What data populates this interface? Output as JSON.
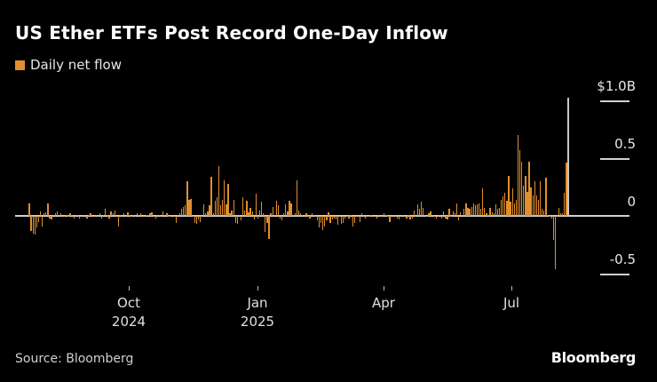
{
  "header": {
    "title": "US Ether ETFs Post Record One-Day Inflow",
    "legend_label": "Daily net flow"
  },
  "colors": {
    "background": "#000000",
    "bar": "#e08f2e",
    "highlight_bar": "#c8c8c8",
    "axis": "#cfcfcf"
  },
  "y_axis": {
    "ticks": [
      {
        "value": 1.0,
        "label": "$1.0B"
      },
      {
        "value": 0.5,
        "label": "0.5"
      },
      {
        "value": 0,
        "label": "0"
      },
      {
        "value": -0.5,
        "label": "-0.5"
      }
    ]
  },
  "x_axis": {
    "ticks": [
      {
        "line1": "Oct",
        "line2": "2024",
        "x": 145
      },
      {
        "line1": "Jan",
        "line2": "2025",
        "x": 290
      },
      {
        "line1": "Apr",
        "line2": "",
        "x": 432
      },
      {
        "line1": "Jul",
        "line2": "",
        "x": 576
      }
    ]
  },
  "footer": {
    "source": "Source: Bloomberg",
    "brand": "Bloomberg"
  },
  "chart_data": {
    "type": "bar",
    "title": "US Ether ETFs Post Record One-Day Inflow",
    "legend": [
      "Daily net flow"
    ],
    "xlabel": "",
    "ylabel": "Daily net flow ($B)",
    "ylim": [
      -0.55,
      1.05
    ],
    "x_range": [
      "2024-07-23",
      "2025-08-11"
    ],
    "x_tick_labels": [
      "Oct 2024",
      "Jan 2025",
      "Apr",
      "Jul"
    ],
    "y_tick_labels": [
      "$1.0B",
      "0.5",
      "0",
      "-0.5"
    ],
    "grid": false,
    "legend_position": "top-left",
    "highlight": {
      "index": "last",
      "label": "Record one-day inflow",
      "value": 1.02
    },
    "values": [
      0.11,
      -0.13,
      -0.15,
      -0.16,
      -0.1,
      -0.05,
      0.04,
      -0.09,
      0.02,
      0.03,
      0.11,
      -0.02,
      -0.03,
      0.01,
      0.02,
      0.04,
      0.01,
      0.02,
      -0.01,
      -0.01,
      0.01,
      -0.01,
      0.02,
      0.01,
      -0.02,
      0.01,
      0.01,
      -0.02,
      0.0,
      0.01,
      0.01,
      -0.02,
      0.01,
      0.02,
      -0.01,
      0.0,
      0.01,
      -0.01,
      0.02,
      -0.02,
      0.01,
      0.06,
      0.01,
      -0.02,
      0.04,
      0.02,
      0.05,
      0.0,
      -0.09,
      0.01,
      -0.01,
      0.02,
      0.0,
      0.03,
      0.01,
      -0.01,
      0.01,
      0.0,
      0.02,
      0.01,
      0.02,
      -0.01,
      0.0,
      0.01,
      0.01,
      0.02,
      0.03,
      0.0,
      -0.02,
      0.01,
      0.01,
      0.0,
      0.04,
      0.01,
      0.02,
      0.0,
      -0.01,
      0.01,
      0.0,
      -0.06,
      0.01,
      0.02,
      0.06,
      0.08,
      0.09,
      0.3,
      0.14,
      0.15,
      0.0,
      -0.06,
      -0.07,
      -0.03,
      -0.05,
      -0.01,
      0.1,
      0.02,
      0.04,
      0.09,
      0.34,
      0.02,
      0.13,
      0.16,
      0.43,
      0.09,
      0.14,
      0.31,
      0.1,
      0.28,
      0.02,
      0.05,
      0.14,
      -0.06,
      -0.07,
      0.01,
      -0.04,
      0.16,
      0.05,
      0.13,
      0.03,
      0.07,
      0.04,
      -0.03,
      0.19,
      -0.02,
      0.05,
      0.12,
      0.02,
      -0.14,
      -0.06,
      -0.2,
      0.02,
      0.08,
      0.01,
      0.13,
      0.09,
      -0.02,
      -0.04,
      0.02,
      0.1,
      0.04,
      0.13,
      0.11,
      0.01,
      0.02,
      0.31,
      0.05,
      0.02,
      0.01,
      0.0,
      0.02,
      -0.01,
      -0.02,
      0.02,
      0.01,
      0.0,
      -0.04,
      -0.1,
      -0.06,
      -0.12,
      -0.09,
      -0.04,
      0.03,
      -0.06,
      -0.03,
      -0.02,
      -0.03,
      -0.08,
      0.0,
      -0.07,
      -0.06,
      -0.02,
      0.0,
      -0.02,
      0.01,
      -0.09,
      -0.06,
      -0.01,
      -0.01,
      -0.05,
      0.02,
      0.0,
      -0.02,
      0.0,
      -0.01,
      0.01,
      0.0,
      -0.01,
      -0.02,
      0.01,
      0.0,
      0.0,
      0.02,
      0.01,
      -0.01,
      -0.05,
      0.0,
      0.01,
      0.0,
      -0.02,
      -0.03,
      -0.01,
      0.01,
      0.0,
      -0.02,
      0.01,
      -0.03,
      -0.02,
      0.05,
      0.0,
      0.1,
      0.06,
      0.12,
      0.07,
      0.01,
      0.0,
      0.02,
      0.04,
      0.01,
      0.0,
      -0.02,
      0.0,
      0.01,
      -0.02,
      0.04,
      -0.02,
      -0.03,
      0.06,
      0.0,
      0.04,
      0.02,
      0.11,
      -0.04,
      0.03,
      0.01,
      0.06,
      0.11,
      0.07,
      0.06,
      0.08,
      0.11,
      0.09,
      0.1,
      0.11,
      0.06,
      0.24,
      0.07,
      0.02,
      0.01,
      0.07,
      0.03,
      0.02,
      0.1,
      0.06,
      0.07,
      0.14,
      0.17,
      0.2,
      0.13,
      0.35,
      0.12,
      0.24,
      0.11,
      0.14,
      0.7,
      0.57,
      0.47,
      0.26,
      0.35,
      0.21,
      0.47,
      0.25,
      0.18,
      0.3,
      0.18,
      0.14,
      0.3,
      0.06,
      0.05,
      0.33,
      0.01,
      0.0,
      -0.02,
      -0.21,
      -0.46,
      0.0,
      0.07,
      0.02,
      0.02,
      0.2,
      0.46,
      1.02
    ]
  }
}
